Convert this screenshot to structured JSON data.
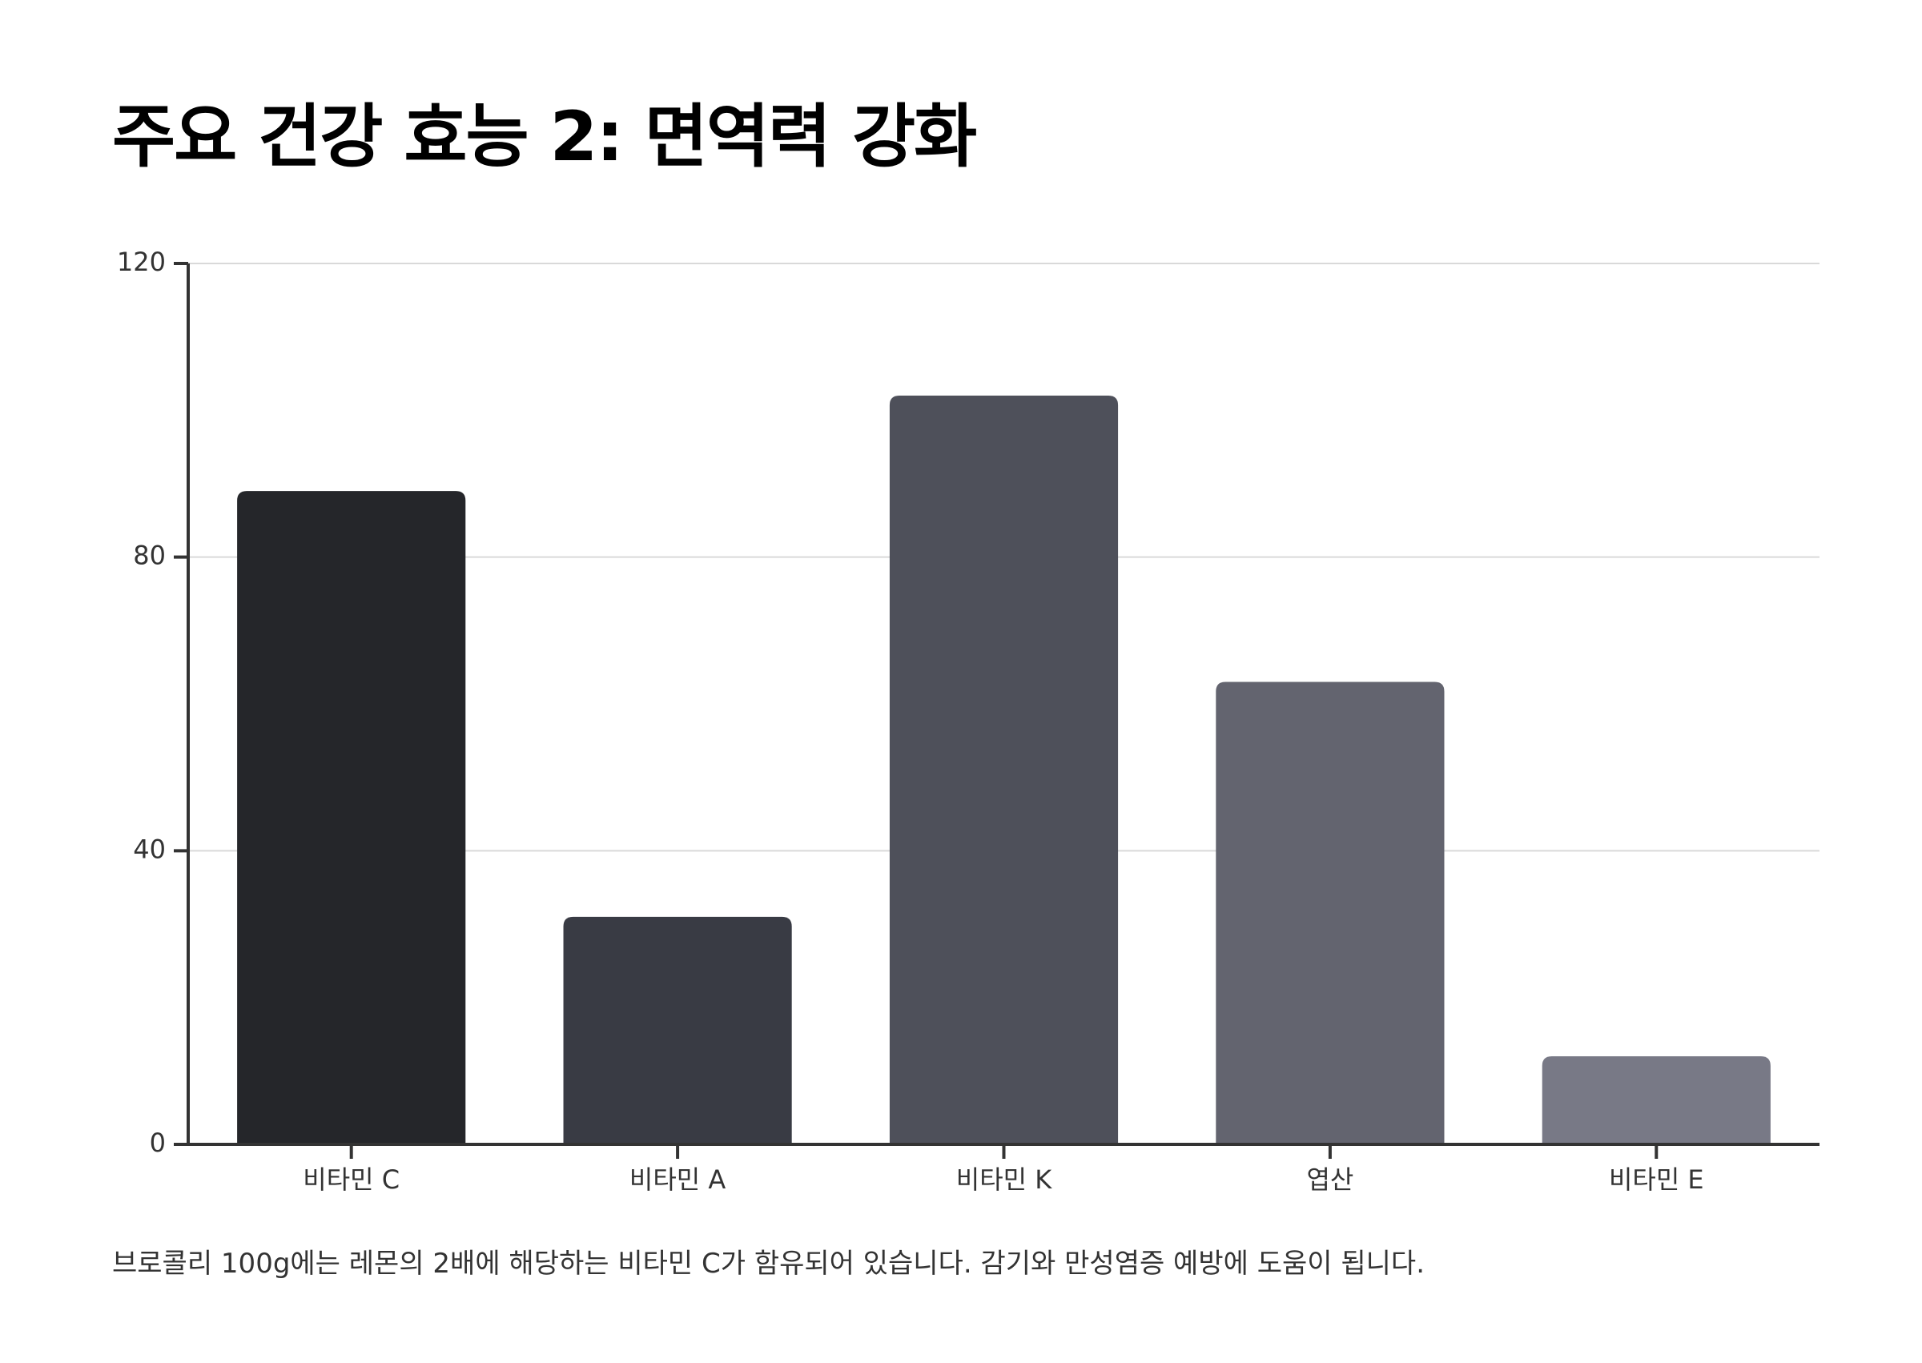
{
  "title": "주요 건강 효능 2: 면역력 강화",
  "caption": "브로콜리 100g에는 레몬의 2배에 해당하는 비타민 C가 함유되어 있습니다. 감기와 만성염증 예방에 도움이 됩니다.",
  "chart_data": {
    "type": "bar",
    "categories": [
      "비타민 C",
      "비타민 A",
      "비타민 K",
      "엽산",
      "비타민 E"
    ],
    "values": [
      89,
      31,
      102,
      63,
      12
    ],
    "ylim": [
      0,
      120
    ],
    "yticks": [
      0,
      40,
      80,
      120
    ],
    "grid": true,
    "xlabel": "",
    "ylabel": "",
    "colors": [
      "#25262a",
      "#393b44",
      "#4e505a",
      "#63646f",
      "#787986"
    ],
    "axis_color": "#333333",
    "grid_color": "#d9d9d9"
  }
}
